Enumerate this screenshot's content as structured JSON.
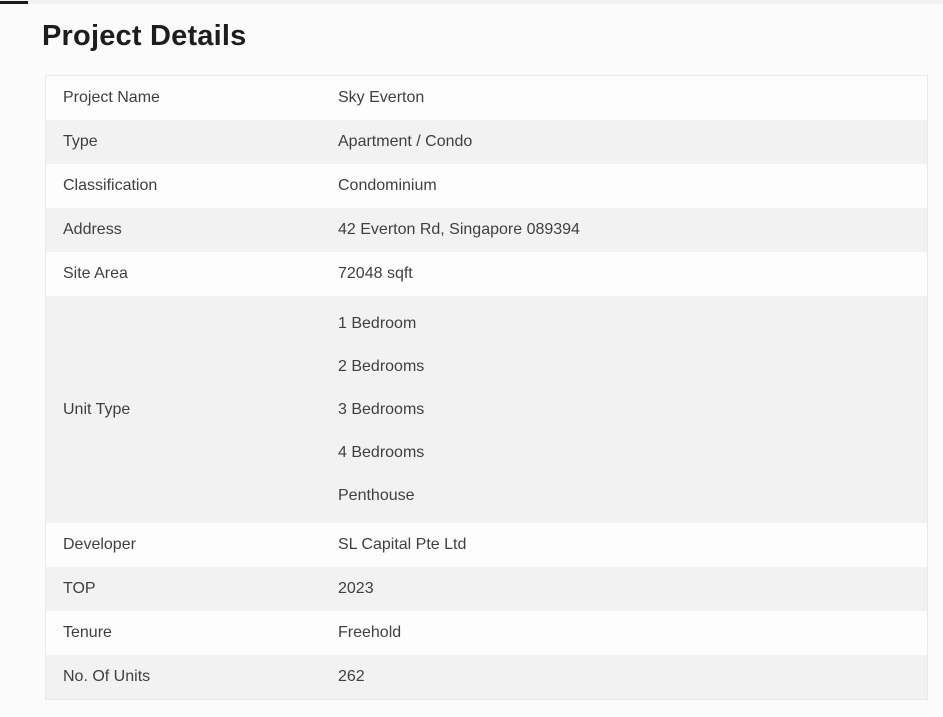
{
  "page": {
    "title": "Project Details"
  },
  "table": {
    "rows": [
      {
        "label": "Project Name",
        "value": "Sky Everton"
      },
      {
        "label": "Type",
        "value": "Apartment / Condo"
      },
      {
        "label": "Classification",
        "value": "Condominium"
      },
      {
        "label": "Address",
        "value": "42 Everton Rd, Singapore 089394"
      },
      {
        "label": "Site Area",
        "value": "72048 sqft"
      },
      {
        "label": "Unit Type",
        "values": [
          "1 Bedroom",
          "2 Bedrooms",
          "3 Bedrooms",
          "4 Bedrooms",
          "Penthouse"
        ]
      },
      {
        "label": "Developer",
        "value": "SL Capital Pte Ltd"
      },
      {
        "label": "TOP",
        "value": "2023"
      },
      {
        "label": "Tenure",
        "value": "Freehold"
      },
      {
        "label": "No. Of Units",
        "value": "262"
      }
    ]
  },
  "colors": {
    "page_background": "#fbfbfb",
    "row_white": "#fdfdfd",
    "row_gray": "#f2f2f2",
    "table_border": "#e9e9e9",
    "text": "#3f3f3f",
    "title_text": "#1d1d1d"
  }
}
